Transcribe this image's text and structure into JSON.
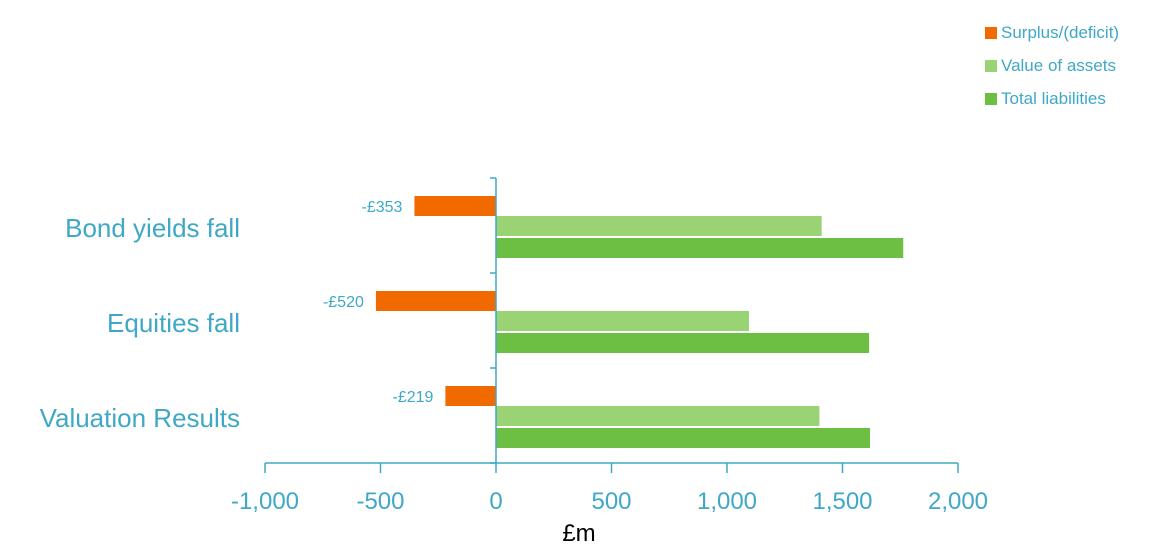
{
  "chart_data": {
    "type": "bar",
    "orientation": "horizontal",
    "categories": [
      "Bond yields fall",
      "Equities fall",
      "Valuation Results"
    ],
    "series": [
      {
        "name": "Surplus/(deficit)",
        "color": "#f06a00",
        "values": [
          -353,
          -520,
          -219
        ],
        "labels": [
          "-£353",
          "-£520",
          "-£219"
        ]
      },
      {
        "name": "Value of assets",
        "color": "#99d374",
        "values": [
          1410,
          1095,
          1400
        ]
      },
      {
        "name": "Total liabilities",
        "color": "#6cbf43",
        "values": [
          1763,
          1615,
          1619
        ]
      }
    ],
    "xlabel": "£m",
    "xlim": [
      -1000,
      2000
    ],
    "xticks": [
      -1000,
      -500,
      0,
      500,
      1000,
      1500,
      2000
    ],
    "xtick_labels": [
      "-1,000",
      "-500",
      "0",
      "500",
      "1,000",
      "1,500",
      "2,000"
    ],
    "axis_color": "#3fa8c6",
    "legend_position": "top-right",
    "grid": false
  }
}
